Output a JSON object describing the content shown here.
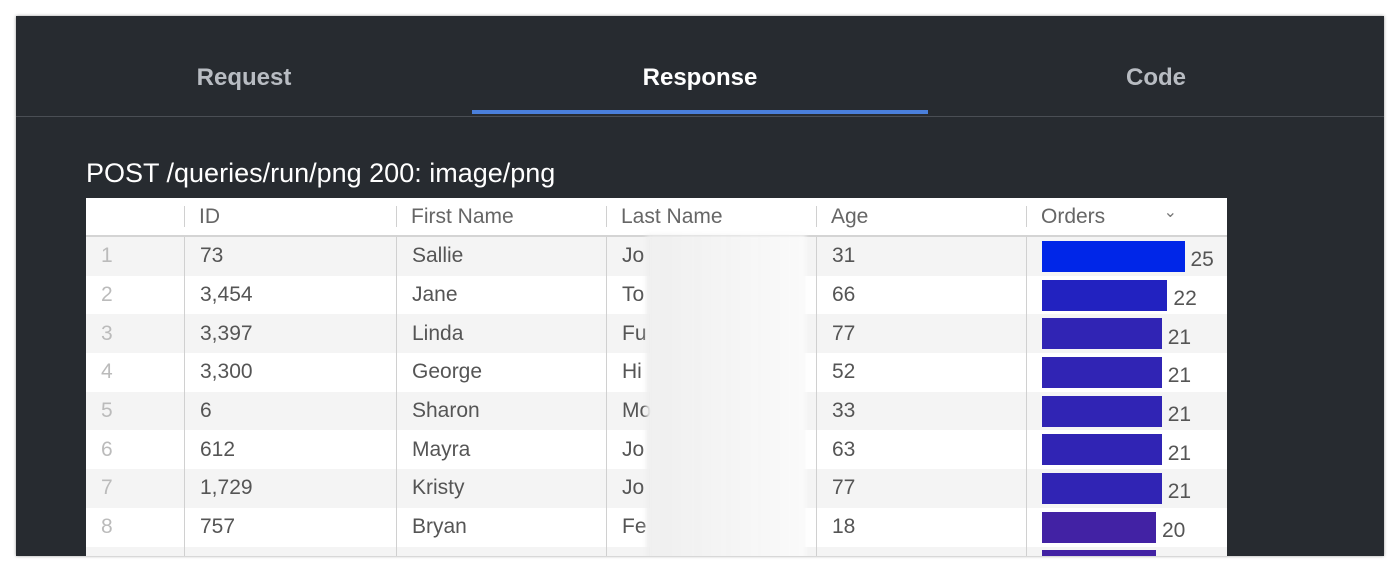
{
  "tabs": [
    {
      "label": "Request",
      "active": false
    },
    {
      "label": "Response",
      "active": true
    },
    {
      "label": "Code",
      "active": false
    }
  ],
  "response_title": "POST /queries/run/png 200: image/png",
  "table": {
    "columns": [
      "",
      "ID",
      "First Name",
      "Last Name",
      "Age",
      "Orders"
    ],
    "sort_icon": "chevron-down-icon",
    "accent": "#4a7fdb",
    "rows": [
      {
        "n": "1",
        "id": "73",
        "first": "Sallie",
        "last": "Jo",
        "age": "31",
        "orders": 25,
        "orders_label": "25",
        "color": "#0026e8"
      },
      {
        "n": "2",
        "id": "3,454",
        "first": "Jane",
        "last": "To",
        "age": "66",
        "orders": 22,
        "orders_label": "22",
        "color": "#2222c0"
      },
      {
        "n": "3",
        "id": "3,397",
        "first": "Linda",
        "last": "Fu",
        "age": "77",
        "orders": 21,
        "orders_label": "21",
        "color": "#3024b4"
      },
      {
        "n": "4",
        "id": "3,300",
        "first": "George",
        "last": "Hi",
        "age": "52",
        "orders": 21,
        "orders_label": "21",
        "color": "#3024b4"
      },
      {
        "n": "5",
        "id": "6",
        "first": "Sharon",
        "last": "Mo",
        "age": "33",
        "orders": 21,
        "orders_label": "21",
        "color": "#3024b4"
      },
      {
        "n": "6",
        "id": "612",
        "first": "Mayra",
        "last": "Jo",
        "age": "63",
        "orders": 21,
        "orders_label": "21",
        "color": "#3024b4"
      },
      {
        "n": "7",
        "id": "1,729",
        "first": "Kristy",
        "last": "Jo",
        "age": "77",
        "orders": 21,
        "orders_label": "21",
        "color": "#3024b4"
      },
      {
        "n": "8",
        "id": "757",
        "first": "Bryan",
        "last": "Fe",
        "age": "18",
        "orders": 20,
        "orders_label": "20",
        "color": "#4222a4"
      },
      {
        "n": "",
        "id": "",
        "first": "",
        "last": "",
        "age": "",
        "orders": 20,
        "orders_label": "",
        "color": "#4222a4"
      }
    ]
  }
}
